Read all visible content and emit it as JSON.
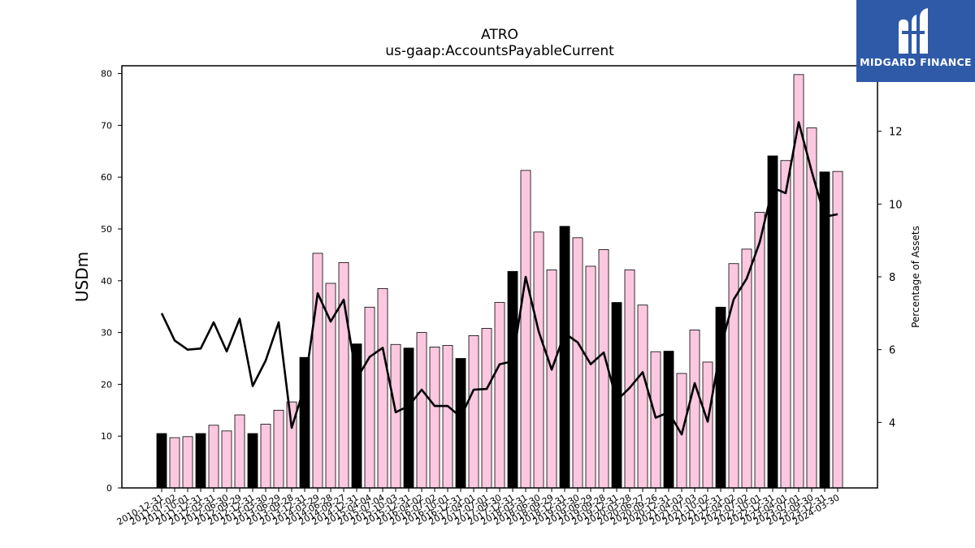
{
  "chart_data": {
    "type": "bar",
    "title": "ATRO",
    "subtitle": "us-gaap:AccountsPayableCurrent",
    "ylabel": "USDm",
    "y2label": "Percentage of Assets",
    "ylim": [
      0,
      81.5
    ],
    "y2lim": [
      2.2,
      13.8
    ],
    "yticks": [
      0,
      10,
      20,
      30,
      40,
      50,
      60,
      70,
      80
    ],
    "y2ticks": [
      4,
      6,
      8,
      10,
      12
    ],
    "grid": false,
    "categories": [
      "2010-12-31",
      "2011-07-02",
      "2011-10-01",
      "2011-12-31",
      "2012-03-31",
      "2012-06-30",
      "2012-09-29",
      "2012-12-31",
      "2013-03-30",
      "2013-06-29",
      "2013-09-28",
      "2013-12-31",
      "2014-03-29",
      "2014-06-28",
      "2014-09-27",
      "2014-12-31",
      "2015-04-04",
      "2015-07-04",
      "2015-10-03",
      "2015-12-31",
      "2016-04-02",
      "2016-07-02",
      "2016-10-01",
      "2016-12-31",
      "2017-04-01",
      "2017-07-01",
      "2017-09-30",
      "2017-12-31",
      "2018-03-31",
      "2018-06-30",
      "2018-09-29",
      "2018-12-31",
      "2019-03-30",
      "2019-06-29",
      "2019-09-28",
      "2019-12-31",
      "2020-03-28",
      "2020-06-27",
      "2020-09-26",
      "2020-12-31",
      "2021-04-03",
      "2021-07-03",
      "2021-10-02",
      "2021-12-31",
      "2022-04-02",
      "2022-07-02",
      "2022-10-01",
      "2022-12-31",
      "2023-04-01",
      "2023-07-01",
      "2023-09-30",
      "2023-12-31",
      "2024-03-30"
    ],
    "tick_labels": [
      "2010-12-31",
      "2011-07-02",
      "2011-10-01",
      "2011-12-31",
      "2012-03-31",
      "2012-06-30",
      "2012-09-29",
      "2012-12-31",
      "2013-03-30",
      "2013-06-29",
      "2013-09-28",
      "2013-12-31",
      "2014-03-29",
      "2014-06-28",
      "2014-09-27",
      "2014-12-31",
      "2015-04-04",
      "2015-07-04",
      "2015-10-03",
      "2015-12-31",
      "2016-04-02",
      "2016-07-02",
      "2016-10-01",
      "2016-12-31",
      "2017-04-01",
      "2017-07-01",
      "2017-09-30",
      "2017-12-31",
      "2018-03-31",
      "2018-06-30",
      "2018-09-29",
      "2018-12-31",
      "2019-03-30",
      "2019-06-29",
      "2019-09-28",
      "2019-12-31",
      "2020-03-28",
      "2020-06-27",
      "2020-09-26",
      "2020-12-31",
      "2021-04-03",
      "2021-07-03",
      "2021-10-02",
      "2021-12-31",
      "2022-04-02",
      "2022-07-02",
      "2022-10-01",
      "2022-12-31",
      "2023-04-01",
      "2023-07-01",
      "2023-09-30",
      "2023-12-31",
      "2024-03-30"
    ],
    "series": [
      {
        "type": "bar",
        "axis": "left",
        "values": [
          10.5,
          9.7,
          9.9,
          10.5,
          12.1,
          11.0,
          14.1,
          10.5,
          12.3,
          15.0,
          16.6,
          25.2,
          45.3,
          39.5,
          43.5,
          27.8,
          34.9,
          38.5,
          27.7,
          27.0,
          30.0,
          27.2,
          27.5,
          25.0,
          29.4,
          30.8,
          35.8,
          41.8,
          61.3,
          49.4,
          42.1,
          50.5,
          48.3,
          42.8,
          46.0,
          35.8,
          42.1,
          35.3,
          26.3,
          26.4,
          22.1,
          30.5,
          24.3,
          34.9,
          43.3,
          46.1,
          53.2,
          64.1,
          63.2,
          79.8,
          69.5,
          61.0,
          61.1
        ],
        "colors": [
          "#000000",
          "#fcc8e0",
          "#fcc8e0",
          "#000000",
          "#fcc8e0",
          "#fcc8e0",
          "#fcc8e0",
          "#000000",
          "#fcc8e0",
          "#fcc8e0",
          "#fcc8e0",
          "#000000",
          "#fcc8e0",
          "#fcc8e0",
          "#fcc8e0",
          "#000000",
          "#fcc8e0",
          "#fcc8e0",
          "#fcc8e0",
          "#000000",
          "#fcc8e0",
          "#fcc8e0",
          "#fcc8e0",
          "#000000",
          "#fcc8e0",
          "#fcc8e0",
          "#fcc8e0",
          "#000000",
          "#fcc8e0",
          "#fcc8e0",
          "#fcc8e0",
          "#000000",
          "#fcc8e0",
          "#fcc8e0",
          "#fcc8e0",
          "#000000",
          "#fcc8e0",
          "#fcc8e0",
          "#fcc8e0",
          "#000000",
          "#fcc8e0",
          "#fcc8e0",
          "#fcc8e0",
          "#000000",
          "#fcc8e0",
          "#fcc8e0",
          "#fcc8e0",
          "#000000",
          "#fcc8e0",
          "#fcc8e0",
          "#fcc8e0",
          "#000000",
          "#fcc8e0"
        ]
      },
      {
        "type": "line",
        "axis": "right",
        "color": "#000000",
        "values": [
          7.0,
          6.25,
          6.0,
          6.03,
          6.75,
          5.95,
          6.85,
          5.0,
          5.7,
          6.75,
          3.85,
          5.0,
          7.55,
          6.77,
          7.37,
          5.2,
          5.8,
          6.05,
          4.28,
          4.45,
          4.9,
          4.45,
          4.45,
          4.15,
          4.9,
          4.92,
          5.6,
          5.68,
          8.0,
          6.5,
          5.45,
          6.45,
          6.2,
          5.6,
          5.92,
          4.6,
          4.95,
          5.38,
          4.13,
          4.28,
          3.67,
          5.08,
          4.02,
          6.05,
          7.38,
          7.95,
          8.95,
          10.45,
          10.3,
          12.25,
          10.9,
          9.65,
          9.72
        ]
      }
    ]
  },
  "logo": {
    "text": "MIDGARD FINANCE",
    "colors": {
      "background": "#2e5aa8",
      "foreground": "#ffffff"
    }
  }
}
